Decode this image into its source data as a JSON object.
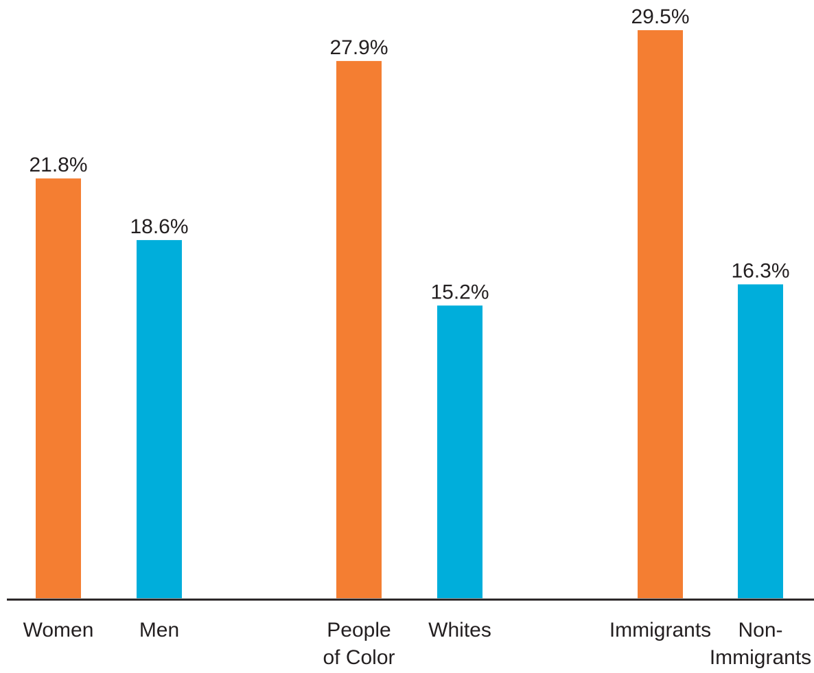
{
  "chart_data": {
    "type": "bar",
    "categories": [
      "Women",
      "Men",
      "People of Color",
      "Whites",
      "Immigrants",
      "Non-Immigrants"
    ],
    "category_lines": [
      [
        "Women"
      ],
      [
        "Men"
      ],
      [
        "People",
        "of Color"
      ],
      [
        "Whites"
      ],
      [
        "Immigrants"
      ],
      [
        "Non-",
        "Immigrants"
      ]
    ],
    "values": [
      21.8,
      18.6,
      27.9,
      15.2,
      29.5,
      16.3
    ],
    "value_labels": [
      "21.8%",
      "18.6%",
      "27.9%",
      "15.2%",
      "29.5%",
      "16.3%"
    ],
    "groups": [
      {
        "members": [
          0,
          1
        ]
      },
      {
        "members": [
          2,
          3
        ]
      },
      {
        "members": [
          4,
          5
        ]
      }
    ],
    "bar_colors": [
      "#f47e32",
      "#00aedb",
      "#f47e32",
      "#00aedb",
      "#f47e32",
      "#00aedb"
    ],
    "title": "",
    "xlabel": "",
    "ylabel": "",
    "ylim": [
      0,
      29.5
    ],
    "grid": false,
    "legend": "none"
  },
  "colors": {
    "orange": "#f47e32",
    "blue": "#00aedb",
    "baseline": "#231f20",
    "text": "#231f20"
  }
}
